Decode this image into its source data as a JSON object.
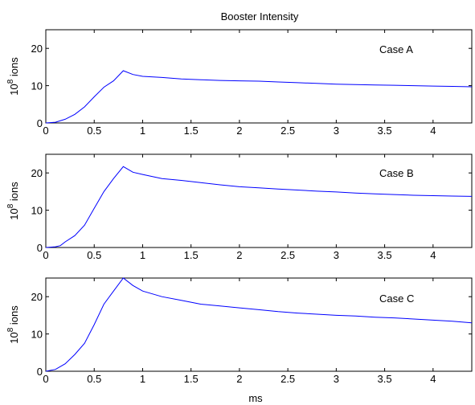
{
  "chart_data": {
    "title": "Booster Intensity",
    "xlabel": "ms",
    "ylabel_base": "10",
    "ylabel_exp": "8",
    "ylabel_unit": " ions",
    "xlim": [
      0,
      4.4
    ],
    "x_ticks": [
      0,
      0.5,
      1,
      1.5,
      2,
      2.5,
      3,
      3.5,
      4
    ],
    "x_tick_labels": [
      "0",
      "0.5",
      "1",
      "1.5",
      "2",
      "2.5",
      "3",
      "3.5",
      "4"
    ],
    "line_color": "#0000ff",
    "panels": [
      {
        "type": "line",
        "label": "Case A",
        "ylim": [
          0,
          25
        ],
        "y_ticks": [
          0,
          10,
          20
        ],
        "y_tick_labels": [
          "0",
          "10",
          "20"
        ],
        "x": [
          0,
          0.1,
          0.2,
          0.3,
          0.4,
          0.5,
          0.6,
          0.7,
          0.8,
          0.9,
          1.0,
          1.2,
          1.4,
          1.6,
          1.8,
          2.0,
          2.2,
          2.4,
          2.6,
          2.8,
          3.0,
          3.2,
          3.4,
          3.6,
          3.8,
          4.0,
          4.2,
          4.4
        ],
        "y": [
          0,
          0.2,
          1.0,
          2.3,
          4.3,
          7.0,
          9.6,
          11.3,
          14.0,
          13.0,
          12.5,
          12.2,
          11.8,
          11.6,
          11.4,
          11.3,
          11.2,
          11.0,
          10.8,
          10.6,
          10.4,
          10.3,
          10.2,
          10.1,
          10.0,
          9.9,
          9.8,
          9.7
        ]
      },
      {
        "type": "line",
        "label": "Case B",
        "ylim": [
          0,
          25
        ],
        "y_ticks": [
          0,
          10,
          20
        ],
        "y_tick_labels": [
          "0",
          "10",
          "20"
        ],
        "x": [
          0,
          0.1,
          0.15,
          0.2,
          0.3,
          0.4,
          0.5,
          0.6,
          0.7,
          0.8,
          0.9,
          1.0,
          1.2,
          1.4,
          1.6,
          1.8,
          2.0,
          2.2,
          2.4,
          2.6,
          2.8,
          3.0,
          3.2,
          3.4,
          3.6,
          3.8,
          4.0,
          4.2,
          4.4
        ],
        "y": [
          0,
          0.2,
          0.5,
          1.5,
          3.2,
          6.0,
          10.5,
          15.0,
          18.5,
          21.7,
          20.2,
          19.6,
          18.5,
          18.0,
          17.4,
          16.8,
          16.3,
          16.0,
          15.7,
          15.4,
          15.1,
          14.9,
          14.6,
          14.4,
          14.2,
          14.0,
          13.9,
          13.8,
          13.7
        ]
      },
      {
        "type": "line",
        "label": "Case C",
        "ylim": [
          0,
          25
        ],
        "y_ticks": [
          0,
          10,
          20
        ],
        "y_tick_labels": [
          "0",
          "10",
          "20"
        ],
        "x": [
          0,
          0.1,
          0.2,
          0.3,
          0.4,
          0.5,
          0.6,
          0.7,
          0.8,
          0.9,
          1.0,
          1.2,
          1.4,
          1.6,
          1.8,
          2.0,
          2.2,
          2.4,
          2.6,
          2.8,
          3.0,
          3.2,
          3.4,
          3.6,
          3.8,
          4.0,
          4.2,
          4.4
        ],
        "y": [
          0,
          0.5,
          2.0,
          4.5,
          7.5,
          12.5,
          18.0,
          21.5,
          25.0,
          23.0,
          21.5,
          20.0,
          19.0,
          18.0,
          17.5,
          17.0,
          16.5,
          16.0,
          15.6,
          15.3,
          15.0,
          14.8,
          14.5,
          14.3,
          14.0,
          13.7,
          13.4,
          13.0
        ]
      }
    ]
  }
}
